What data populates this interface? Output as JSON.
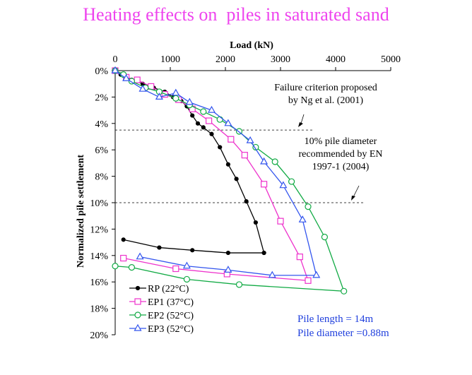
{
  "title": "Heating effects on  piles in saturated sand",
  "chart_data": {
    "type": "line",
    "title": "Heating effects on  piles in saturated sand",
    "xlabel": "Load (kN)",
    "ylabel": "Normalized pile settlement",
    "xlim": [
      0,
      5000
    ],
    "ylim": [
      0,
      20
    ],
    "y_inverted": true,
    "x_axis_position": "top",
    "x_ticks": [
      "0",
      "1000",
      "2000",
      "3000",
      "4000",
      "5000"
    ],
    "y_ticks": [
      "0%",
      "2%",
      "4%",
      "6%",
      "8%",
      "10%",
      "12%",
      "14%",
      "16%",
      "18%",
      "20%"
    ],
    "grid": false,
    "legend_position": "bottom-left",
    "reference_lines": [
      {
        "y": 4.5,
        "xmin": 0,
        "xmax": 3600,
        "style": "dashed"
      },
      {
        "y": 10.0,
        "xmin": 0,
        "xmax": 4500,
        "style": "dashed"
      }
    ],
    "annotations": [
      {
        "lines": [
          "Failure criterion proposed",
          "by Ng et al. (2001)"
        ],
        "arrow_to": [
          3400,
          4.4
        ]
      },
      {
        "lines": [
          "10% pile diameter",
          "recommended by EN",
          "1997-1 (2004)"
        ],
        "arrow_to": [
          4350,
          9.9
        ]
      }
    ],
    "info_text": [
      "Pile length = 14m",
      "Pile diameter =0.88m"
    ],
    "series": [
      {
        "name": "RP  (22°C)",
        "color": "#000000",
        "marker": "filled-circle",
        "x": [
          0,
          100,
          300,
          500,
          700,
          900,
          1050,
          1200,
          1300,
          1400,
          1500,
          1600,
          1750,
          1900,
          2050,
          2200,
          2380,
          2550,
          2700,
          2700,
          2050,
          1400,
          800,
          150
        ],
        "y": [
          0,
          0.3,
          0.7,
          1.0,
          1.3,
          1.6,
          2.0,
          2.3,
          2.7,
          3.4,
          4.0,
          4.3,
          4.8,
          5.8,
          7.1,
          8.2,
          9.9,
          11.5,
          13.8,
          13.8,
          13.8,
          13.6,
          13.4,
          12.8
        ]
      },
      {
        "name": "EP1 (37°C)",
        "color": "#ee33cc",
        "marker": "open-square",
        "x": [
          0,
          200,
          400,
          650,
          900,
          1150,
          1400,
          1700,
          2100,
          2350,
          2700,
          3000,
          3350,
          3500,
          2030,
          1100,
          150
        ],
        "y": [
          0,
          0.5,
          0.7,
          1.2,
          1.8,
          2.2,
          2.9,
          3.8,
          5.2,
          6.4,
          8.6,
          11.4,
          14.1,
          15.9,
          15.4,
          15.0,
          14.2
        ]
      },
      {
        "name": "EP2 (52°C)",
        "color": "#11aa44",
        "marker": "open-circle",
        "x": [
          0,
          150,
          300,
          550,
          800,
          1100,
          1350,
          1600,
          1900,
          2250,
          2550,
          2900,
          3200,
          3500,
          3800,
          4150,
          2250,
          1300,
          300,
          0
        ],
        "y": [
          0,
          0.3,
          0.8,
          1.3,
          1.6,
          2.1,
          2.6,
          3.1,
          3.7,
          4.6,
          5.8,
          6.9,
          8.4,
          10.3,
          12.6,
          16.7,
          16.2,
          15.8,
          14.9,
          14.8
        ]
      },
      {
        "name": "EP3 (52°C)",
        "color": "#3355ee",
        "marker": "open-triangle",
        "x": [
          0,
          200,
          500,
          800,
          1100,
          1350,
          1750,
          2050,
          2450,
          2700,
          3050,
          3400,
          3650,
          2850,
          2050,
          1300,
          450
        ],
        "y": [
          0,
          0.6,
          1.4,
          2.0,
          1.7,
          2.4,
          3.0,
          4.0,
          5.3,
          6.9,
          8.7,
          11.3,
          15.5,
          15.5,
          15.1,
          14.8,
          14.1
        ]
      }
    ]
  }
}
